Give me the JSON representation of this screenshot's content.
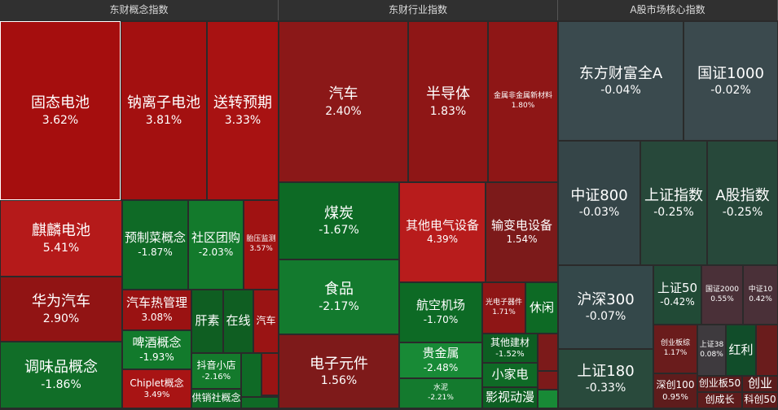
{
  "panels": [
    {
      "title": "东财概念指数",
      "tiles": [
        {
          "name": "固态电池",
          "change": "3.62%"
        },
        {
          "name": "钠离子电池",
          "change": "3.81%"
        },
        {
          "name": "送转预期",
          "change": "3.33%"
        },
        {
          "name": "麒麟电池",
          "change": "5.41%"
        },
        {
          "name": "华为汽车",
          "change": "2.90%"
        },
        {
          "name": "调味品概念",
          "change": "-1.86%"
        },
        {
          "name": "预制菜概念",
          "change": "-1.87%"
        },
        {
          "name": "社区团购",
          "change": "-2.03%"
        },
        {
          "name": "胎压监测",
          "change": "3.57%"
        },
        {
          "name": "汽车热管理",
          "change": "3.08%"
        },
        {
          "name": "啤酒概念",
          "change": "-1.93%"
        },
        {
          "name": "Chiplet概念",
          "change": "3.49%"
        },
        {
          "name": "肝素"
        },
        {
          "name": "在线"
        },
        {
          "name": "汽车"
        },
        {
          "name": "抖音小店",
          "change": "-2.16%"
        },
        {
          "name": "供销社概念"
        }
      ]
    },
    {
      "title": "东财行业指数",
      "tiles": [
        {
          "name": "汽车",
          "change": "2.40%"
        },
        {
          "name": "半导体",
          "change": "1.83%"
        },
        {
          "name": "金属非金属新材料",
          "change": "1.80%"
        },
        {
          "name": "煤炭",
          "change": "-1.67%"
        },
        {
          "name": "食品",
          "change": "-2.17%"
        },
        {
          "name": "电子元件",
          "change": "1.56%"
        },
        {
          "name": "其他电气设备",
          "change": "4.39%"
        },
        {
          "name": "输变电设备",
          "change": "1.54%"
        },
        {
          "name": "航空机场",
          "change": "-1.70%"
        },
        {
          "name": "贵金属",
          "change": "-2.48%"
        },
        {
          "name": "水泥",
          "change": "-2.21%"
        },
        {
          "name": "光电子器件",
          "change": "1.71%"
        },
        {
          "name": "休闲"
        },
        {
          "name": "其他建材",
          "change": "-1.52%"
        },
        {
          "name": "小家电"
        },
        {
          "name": "影视动漫"
        }
      ]
    },
    {
      "title": "A股市场核心指数",
      "tiles": [
        {
          "name": "东方财富全A",
          "change": "-0.04%"
        },
        {
          "name": "国证1000",
          "change": "-0.02%"
        },
        {
          "name": "中证800",
          "change": "-0.03%"
        },
        {
          "name": "上证指数",
          "change": "-0.25%"
        },
        {
          "name": "A股指数",
          "change": "-0.25%"
        },
        {
          "name": "沪深300",
          "change": "-0.07%"
        },
        {
          "name": "上证180",
          "change": "-0.33%"
        },
        {
          "name": "上证50",
          "change": "-0.42%"
        },
        {
          "name": "国证2000",
          "change": "0.55%"
        },
        {
          "name": "中证10",
          "change": "0.42%"
        },
        {
          "name": "创业板综",
          "change": "1.17%"
        },
        {
          "name": "深创100",
          "change": "0.95%"
        },
        {
          "name": "上证38",
          "change": "0.08%"
        },
        {
          "name": "红利"
        },
        {
          "name": "创业板50"
        },
        {
          "name": "创成长"
        },
        {
          "name": "创业"
        },
        {
          "name": "科创50"
        }
      ]
    }
  ]
}
